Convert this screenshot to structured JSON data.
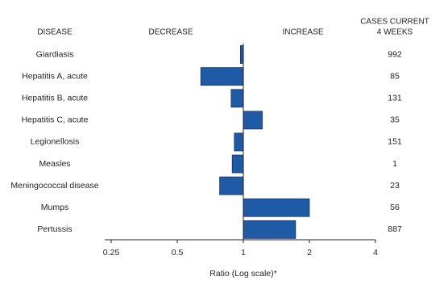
{
  "chart_data": {
    "type": "bar",
    "orientation": "horizontal",
    "log_scale": true,
    "log_base": 2,
    "header_category": "DISEASE",
    "header_left": "DECREASE",
    "header_right": "INCREASE",
    "header_cases": [
      "CASES CURRENT",
      "4 WEEKS"
    ],
    "categories": [
      "Giardiasis",
      "Hepatitis A, acute",
      "Hepatitis B, acute",
      "Hepatitis C, acute",
      "Legionellosis",
      "Measles",
      "Meningococcal disease",
      "Mumps",
      "Pertussis"
    ],
    "values": [
      0.97,
      0.64,
      0.88,
      1.22,
      0.91,
      0.89,
      0.78,
      2.0,
      1.73
    ],
    "cases": [
      992,
      85,
      131,
      35,
      151,
      1,
      23,
      56,
      887
    ],
    "color": "#1f5aa6",
    "xlim": [
      0.25,
      4
    ],
    "xticks": [
      0.25,
      0.5,
      1,
      2,
      4
    ],
    "xlabel": "Ratio (Log scale)*"
  }
}
